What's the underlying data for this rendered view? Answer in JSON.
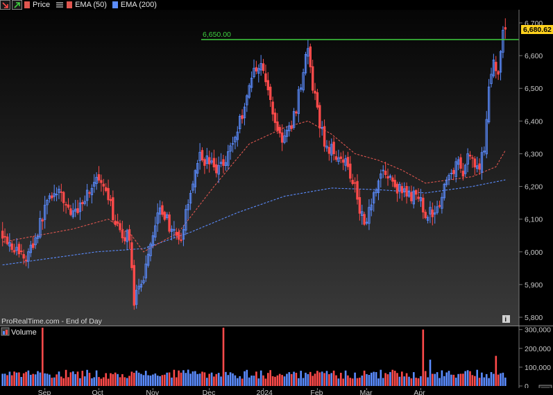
{
  "legend": {
    "price_label": "Price",
    "ema50_label": "EMA (50)",
    "ema200_label": "EMA (200)"
  },
  "volume_panel": {
    "label": "Volume"
  },
  "footer": {
    "source": "ProRealTime.com - End of Day"
  },
  "colors": {
    "up": "#5b8cff",
    "down": "#ff4a4a",
    "ema50": "#e0564f",
    "ema200": "#5b8cff",
    "hline": "#3fd03f",
    "last_price_bg": "#ffd21e",
    "axis_text": "#c8c8c8"
  },
  "icons": {
    "down_arrow": "down-arrow-icon",
    "up_arrow": "up-arrow-icon",
    "ema_lines": "line-list-icon",
    "info": "info-icon"
  },
  "chart_data": [
    {
      "type": "candlestick",
      "title": "",
      "series": [
        {
          "name": "Price"
        },
        {
          "name": "EMA (50)"
        },
        {
          "name": "EMA (200)"
        }
      ],
      "x_labels": [
        "Sep",
        "Oct",
        "Nov",
        "Dec",
        "2024",
        "Feb",
        "Mar",
        "Apr"
      ],
      "y_ticks": [
        "5,800",
        "5,900",
        "6,000",
        "6,100",
        "6,200",
        "6,300",
        "6,400",
        "6,500",
        "6,600",
        "6,700"
      ],
      "ylim": [
        5800,
        6720
      ],
      "horizontal_line": {
        "value": 6650,
        "label": "6,650.00"
      },
      "last_price": {
        "value": 6680.62,
        "label": "6,680.62"
      },
      "close_points": [
        [
          0,
          6060
        ],
        [
          5,
          6010
        ],
        [
          10,
          5980
        ],
        [
          15,
          6060
        ],
        [
          20,
          6180
        ],
        [
          25,
          6170
        ],
        [
          30,
          6110
        ],
        [
          35,
          6170
        ],
        [
          40,
          6220
        ],
        [
          45,
          6160
        ],
        [
          50,
          6050
        ],
        [
          54,
          6050
        ],
        [
          56,
          5850
        ],
        [
          59,
          5890
        ],
        [
          62,
          6000
        ],
        [
          67,
          6150
        ],
        [
          71,
          6080
        ],
        [
          75,
          6020
        ],
        [
          79,
          6140
        ],
        [
          83,
          6290
        ],
        [
          87,
          6280
        ],
        [
          91,
          6250
        ],
        [
          95,
          6290
        ],
        [
          99,
          6350
        ],
        [
          103,
          6450
        ],
        [
          107,
          6560
        ],
        [
          110,
          6580
        ],
        [
          113,
          6490
        ],
        [
          116,
          6400
        ],
        [
          119,
          6340
        ],
        [
          122,
          6370
        ],
        [
          125,
          6440
        ],
        [
          128,
          6560
        ],
        [
          130,
          6620
        ],
        [
          132,
          6500
        ],
        [
          134,
          6430
        ],
        [
          137,
          6330
        ],
        [
          140,
          6310
        ],
        [
          145,
          6290
        ],
        [
          150,
          6210
        ],
        [
          152,
          6130
        ],
        [
          155,
          6090
        ],
        [
          158,
          6190
        ],
        [
          162,
          6250
        ],
        [
          166,
          6210
        ],
        [
          170,
          6180
        ],
        [
          175,
          6170
        ],
        [
          178,
          6150
        ],
        [
          181,
          6110
        ],
        [
          184,
          6130
        ],
        [
          187,
          6170
        ],
        [
          190,
          6230
        ],
        [
          193,
          6270
        ],
        [
          196,
          6250
        ],
        [
          199,
          6310
        ],
        [
          201,
          6260
        ],
        [
          203,
          6270
        ],
        [
          205,
          6300
        ],
        [
          207,
          6520
        ],
        [
          209,
          6590
        ],
        [
          211,
          6530
        ],
        [
          213,
          6660
        ],
        [
          214,
          6680
        ]
      ],
      "ema50_points": [
        [
          0,
          6030
        ],
        [
          15,
          6050
        ],
        [
          30,
          6070
        ],
        [
          45,
          6100
        ],
        [
          55,
          6050
        ],
        [
          60,
          6000
        ],
        [
          75,
          6060
        ],
        [
          90,
          6200
        ],
        [
          105,
          6330
        ],
        [
          120,
          6380
        ],
        [
          130,
          6400
        ],
        [
          140,
          6360
        ],
        [
          150,
          6300
        ],
        [
          160,
          6280
        ],
        [
          170,
          6250
        ],
        [
          180,
          6210
        ],
        [
          190,
          6220
        ],
        [
          200,
          6230
        ],
        [
          210,
          6260
        ],
        [
          214,
          6310
        ]
      ],
      "ema200_points": [
        [
          0,
          5960
        ],
        [
          20,
          5980
        ],
        [
          40,
          6000
        ],
        [
          60,
          6010
        ],
        [
          80,
          6060
        ],
        [
          100,
          6120
        ],
        [
          120,
          6170
        ],
        [
          140,
          6195
        ],
        [
          160,
          6190
        ],
        [
          180,
          6180
        ],
        [
          200,
          6200
        ],
        [
          214,
          6220
        ]
      ]
    },
    {
      "type": "bar",
      "title": "Volume",
      "y_ticks": [
        "0",
        "100,000",
        "200,000",
        "300,000"
      ],
      "ylim": [
        0,
        310000
      ],
      "peaks": [
        [
          17,
          310000
        ],
        [
          94,
          310000
        ],
        [
          179,
          300000
        ],
        [
          182,
          140000
        ],
        [
          210,
          160000
        ]
      ],
      "typical_volume": 70000
    }
  ]
}
